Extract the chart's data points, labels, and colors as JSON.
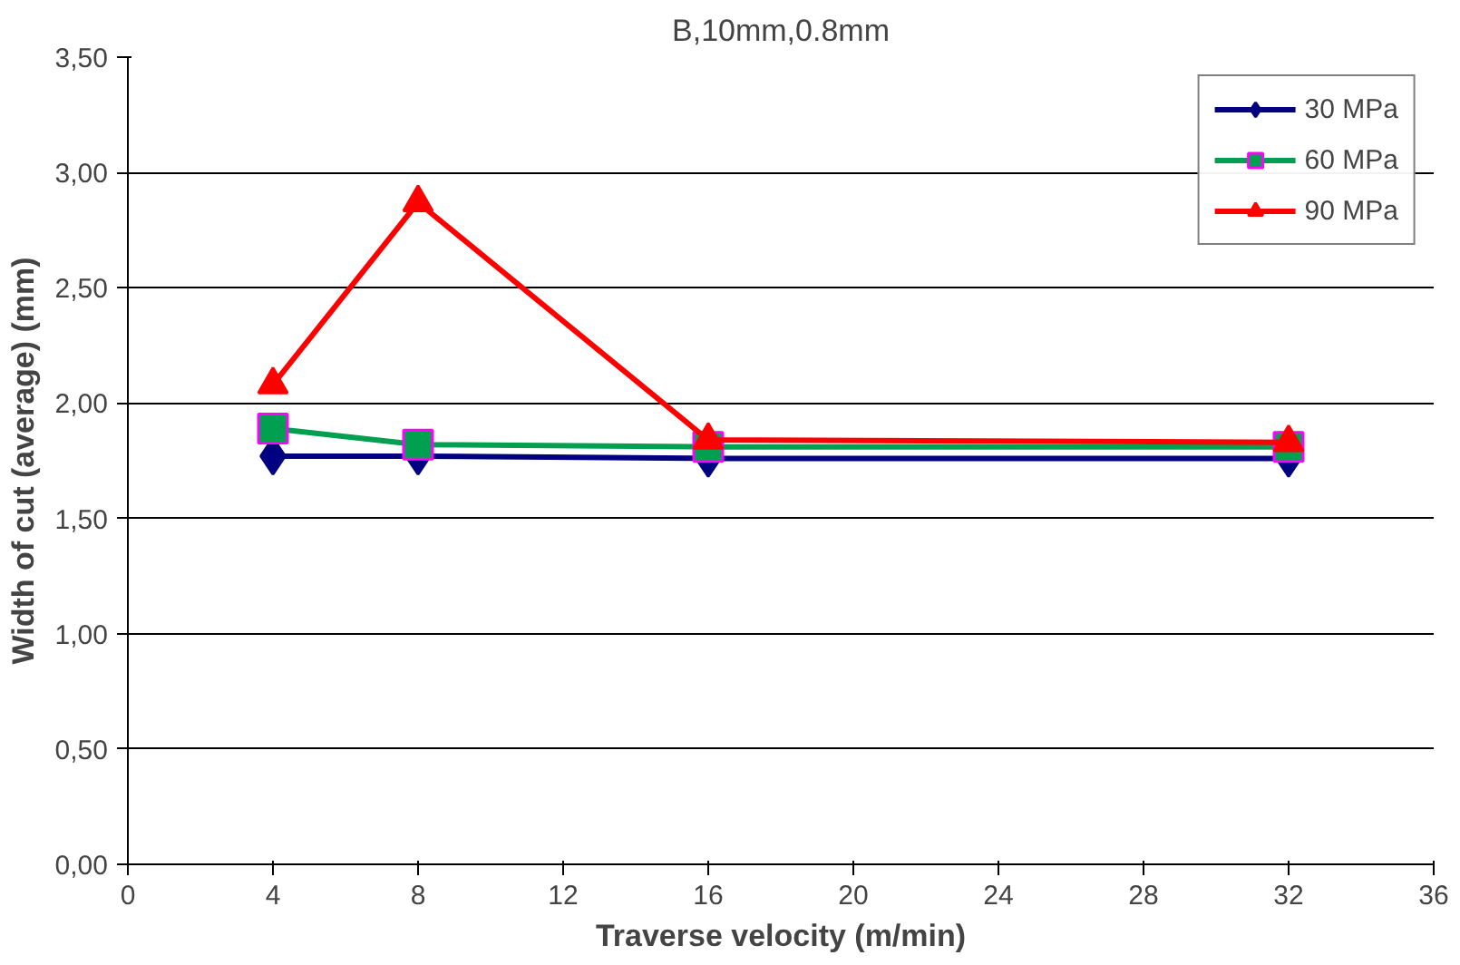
{
  "chart_data": {
    "type": "line",
    "title": "B,10mm,0.8mm",
    "xlabel": "Traverse velocity (m/min)",
    "ylabel": "Width of cut (average) (mm)",
    "x": [
      4,
      8,
      16,
      32
    ],
    "series": [
      {
        "name": "30 MPa",
        "color": "#000080",
        "marker": "diamond",
        "values": [
          1.77,
          1.77,
          1.76,
          1.76
        ]
      },
      {
        "name": "60 MPa",
        "color": "#00a050",
        "marker": "square",
        "values": [
          1.89,
          1.82,
          1.81,
          1.81
        ]
      },
      {
        "name": "90 MPa",
        "color": "#ff0000",
        "marker": "triangle",
        "values": [
          2.08,
          2.87,
          1.84,
          1.83
        ]
      }
    ],
    "xlim": [
      0,
      36
    ],
    "xticks": [
      0,
      4,
      8,
      12,
      16,
      20,
      24,
      28,
      32,
      36
    ],
    "ylim": [
      0,
      3.5
    ],
    "yticks": [
      {
        "value": 0,
        "label": "0,00"
      },
      {
        "value": 0.5,
        "label": "0,50"
      },
      {
        "value": 1,
        "label": "1,00"
      },
      {
        "value": 1.5,
        "label": "1,50"
      },
      {
        "value": 2,
        "label": "2,00"
      },
      {
        "value": 2.5,
        "label": "2,50"
      },
      {
        "value": 3,
        "label": "3,00"
      },
      {
        "value": 3.5,
        "label": "3,50"
      }
    ],
    "grid": "y",
    "legend": "top right",
    "line_style": "solid"
  }
}
